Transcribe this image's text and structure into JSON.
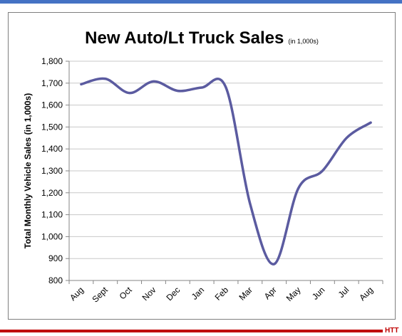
{
  "colors": {
    "top_bar": "#4472c4",
    "bottom_bar": "#c00000",
    "brand": "#c00000",
    "line": "#5b5ba0",
    "grid": "#c8c8c8",
    "axis": "#868686"
  },
  "brand": "HTT",
  "chart_data": {
    "type": "line",
    "title": "New Auto/Lt Truck Sales",
    "title_note": "(in 1,000s)",
    "xlabel": "",
    "ylabel": "Total Monthly Vehicle Sales (in 1,000s)",
    "ylim": [
      800,
      1800
    ],
    "y_ticks": [
      800,
      900,
      1000,
      1100,
      1200,
      1300,
      1400,
      1500,
      1600,
      1700,
      1800
    ],
    "y_tick_labels": [
      "800",
      "900",
      "1,000",
      "1,100",
      "1,200",
      "1,300",
      "1,400",
      "1,500",
      "1,600",
      "1,700",
      "1,800"
    ],
    "grid": true,
    "legend": "none",
    "categories": [
      "Aug",
      "Sept",
      "Oct",
      "Nov",
      "Dec",
      "Jan",
      "Feb",
      "Mar",
      "Apr",
      "May",
      "Jun",
      "Jul",
      "Aug"
    ],
    "series": [
      {
        "values": [
          1695,
          1720,
          1655,
          1708,
          1665,
          1680,
          1680,
          1150,
          875,
          1220,
          1300,
          1450,
          1520
        ]
      }
    ]
  }
}
